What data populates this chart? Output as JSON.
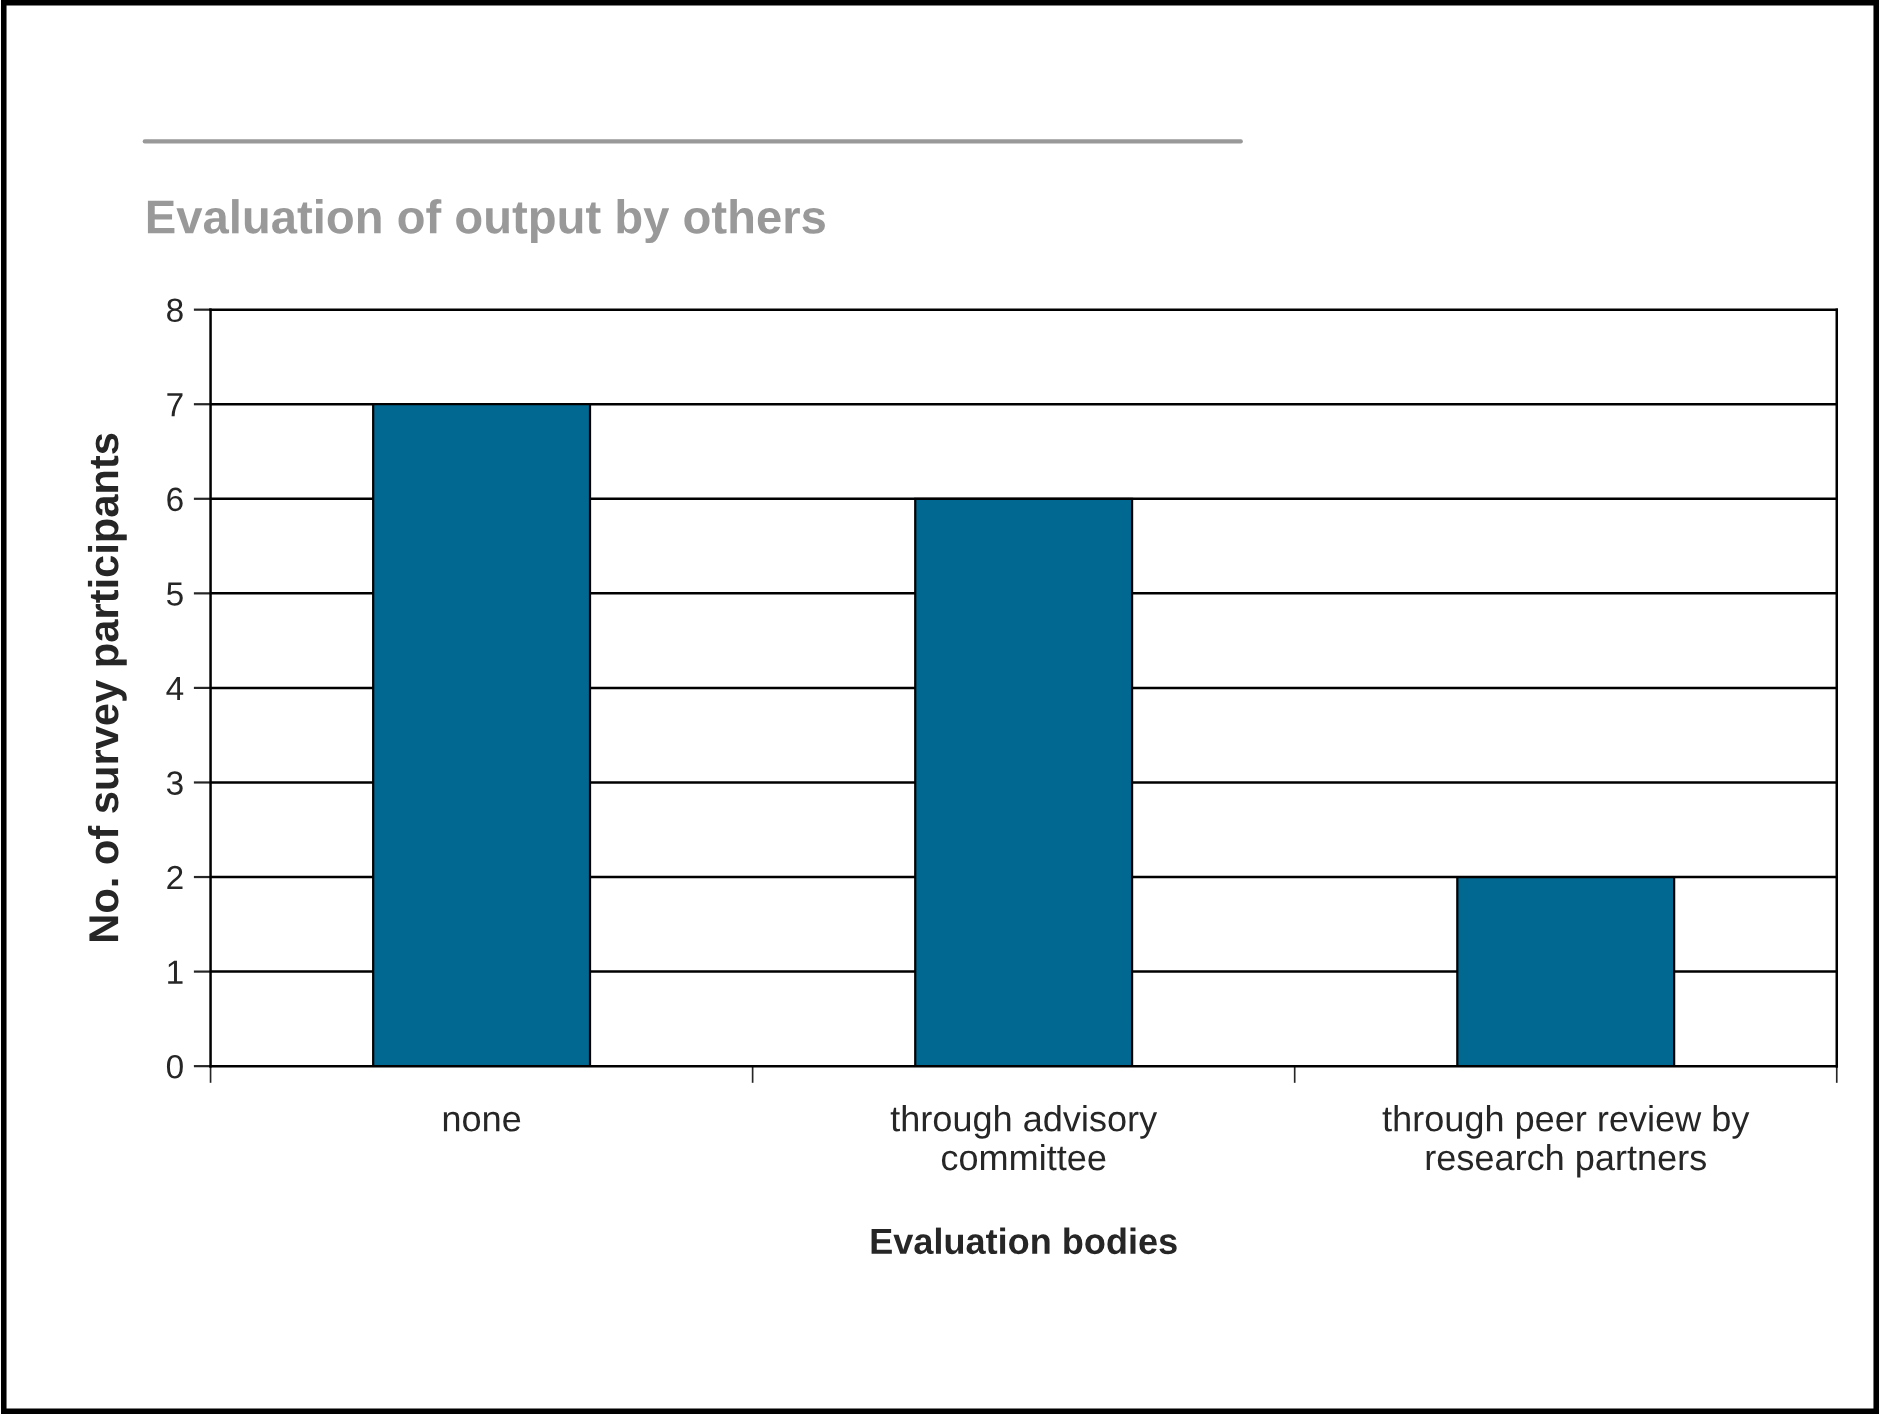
{
  "chart_data": {
    "type": "bar",
    "title": "Evaluation of output by others",
    "xlabel": "Evaluation bodies",
    "ylabel": "No. of survey participants",
    "categories": [
      "none",
      "through advisory\ncommittee",
      "through peer review by\nresearch partners"
    ],
    "values": [
      7,
      6,
      2
    ],
    "color": "#006891",
    "ylim": [
      0,
      8
    ],
    "yticks": [
      0,
      1,
      2,
      3,
      4,
      5,
      6,
      7,
      8
    ],
    "grid": "y",
    "legend": false
  }
}
